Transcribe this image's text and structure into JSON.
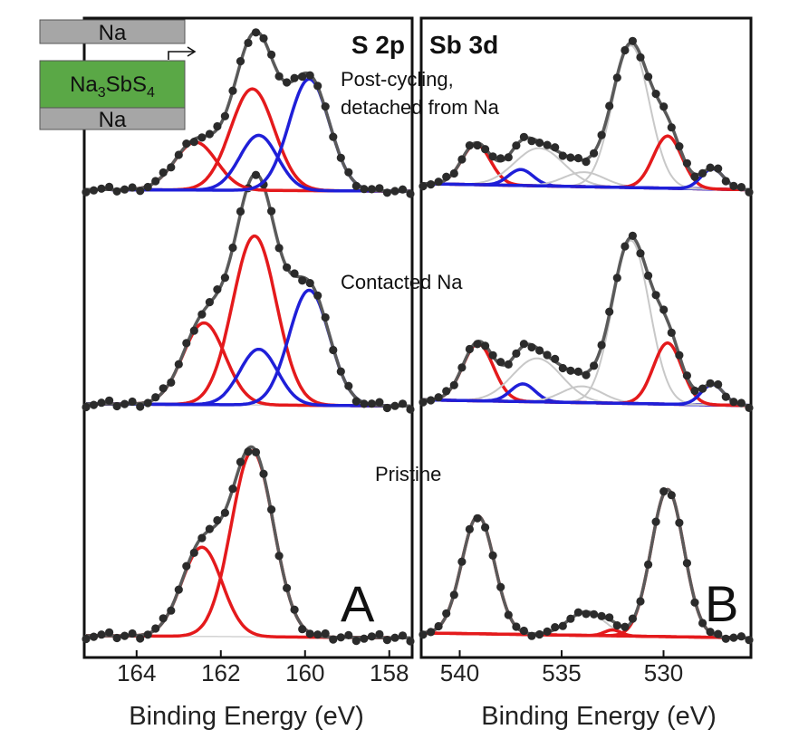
{
  "colors": {
    "data": "#2b2b2b",
    "fit": "#5a5a5a",
    "red": "#e41a1c",
    "blue": "#1f1fd8",
    "gray": "#c8c8c8",
    "bg_blue": "#3030b0",
    "bg_red": "#c04040",
    "inset_green": "#5aa846",
    "inset_gray": "#a6a6a6"
  },
  "inset": {
    "top_label": "Na",
    "middle_main": "Na",
    "middle_sub1": "3",
    "middle_mid": "SbS",
    "middle_sub2": "4",
    "bottom_label": "Na"
  },
  "chart_data": [
    {
      "panel_letter": "A",
      "region": "S 2p",
      "xlabel": "Binding Energy (eV)",
      "xticks": [
        164,
        162,
        160,
        158
      ],
      "xlim": [
        165.2,
        157.5
      ],
      "spectra": [
        {
          "label": "Pristine",
          "peaks": [
            {
              "color": "red",
              "center": 162.45,
              "amplitude": 0.48,
              "width": 0.48
            },
            {
              "color": "red",
              "center": 161.25,
              "amplitude": 1.0,
              "width": 0.5
            }
          ],
          "background": 0.03
        },
        {
          "label": "Contacted Na",
          "peaks": [
            {
              "color": "red",
              "center": 162.4,
              "amplitude": 0.44,
              "width": 0.5
            },
            {
              "color": "red",
              "center": 161.2,
              "amplitude": 0.91,
              "width": 0.52
            },
            {
              "color": "blue",
              "center": 161.1,
              "amplitude": 0.3,
              "width": 0.45
            },
            {
              "color": "blue",
              "center": 159.9,
              "amplitude": 0.62,
              "width": 0.48
            }
          ],
          "background": 0.03
        },
        {
          "label": "Post-cycling, detached from Na",
          "label_lines": [
            "Post-cycling,",
            "detached from Na"
          ],
          "peaks": [
            {
              "color": "red",
              "center": 162.6,
              "amplitude": 0.33,
              "width": 0.5
            },
            {
              "color": "red",
              "center": 161.25,
              "amplitude": 0.7,
              "width": 0.52
            },
            {
              "color": "blue",
              "center": 161.1,
              "amplitude": 0.38,
              "width": 0.45
            },
            {
              "color": "blue",
              "center": 159.9,
              "amplitude": 0.77,
              "width": 0.48
            }
          ],
          "background": 0.03
        }
      ]
    },
    {
      "panel_letter": "B",
      "region": "Sb 3d",
      "xlabel": "Binding Energy (eV)",
      "xticks": [
        540,
        535,
        530
      ],
      "xlim": [
        541.8,
        525.8
      ],
      "spectra": [
        {
          "label": "Pristine",
          "peaks": [
            {
              "color": "red",
              "center": 539.1,
              "amplitude": 1.0,
              "width": 0.8
            },
            {
              "color": "red",
              "center": 529.8,
              "amplitude": 1.25,
              "width": 0.8
            },
            {
              "color": "gray",
              "center": 533.8,
              "amplitude": 0.2,
              "width": 0.9
            },
            {
              "color": "red",
              "center": 532.5,
              "amplitude": 0.05,
              "width": 0.4
            }
          ],
          "background": 0.07,
          "bg_color": "bg_red"
        },
        {
          "label": "Contacted Na",
          "peaks": [
            {
              "color": "red",
              "center": 539.1,
              "amplitude": 0.42,
              "width": 0.75
            },
            {
              "color": "blue",
              "center": 536.9,
              "amplitude": 0.13,
              "width": 0.6
            },
            {
              "color": "gray",
              "center": 536.2,
              "amplitude": 0.32,
              "width": 1.2
            },
            {
              "color": "gray",
              "center": 534.0,
              "amplitude": 0.12,
              "width": 1.0
            },
            {
              "color": "gray",
              "center": 531.6,
              "amplitude": 1.2,
              "width": 0.9
            },
            {
              "color": "red",
              "center": 529.8,
              "amplitude": 0.45,
              "width": 0.7
            },
            {
              "color": "blue",
              "center": 527.6,
              "amplitude": 0.15,
              "width": 0.55
            }
          ],
          "background": 0.07,
          "bg_color": "bg_blue"
        },
        {
          "label": "Post-cycling, detached from Na",
          "peaks": [
            {
              "color": "red",
              "center": 539.2,
              "amplitude": 0.28,
              "width": 0.7
            },
            {
              "color": "blue",
              "center": 537.0,
              "amplitude": 0.11,
              "width": 0.6
            },
            {
              "color": "gray",
              "center": 536.1,
              "amplitude": 0.26,
              "width": 1.2
            },
            {
              "color": "gray",
              "center": 533.9,
              "amplitude": 0.1,
              "width": 1.0
            },
            {
              "color": "gray",
              "center": 531.6,
              "amplitude": 0.98,
              "width": 0.9
            },
            {
              "color": "red",
              "center": 529.8,
              "amplitude": 0.36,
              "width": 0.7
            },
            {
              "color": "blue",
              "center": 527.6,
              "amplitude": 0.14,
              "width": 0.55
            }
          ],
          "background": 0.07,
          "bg_color": "bg_blue"
        }
      ]
    }
  ]
}
